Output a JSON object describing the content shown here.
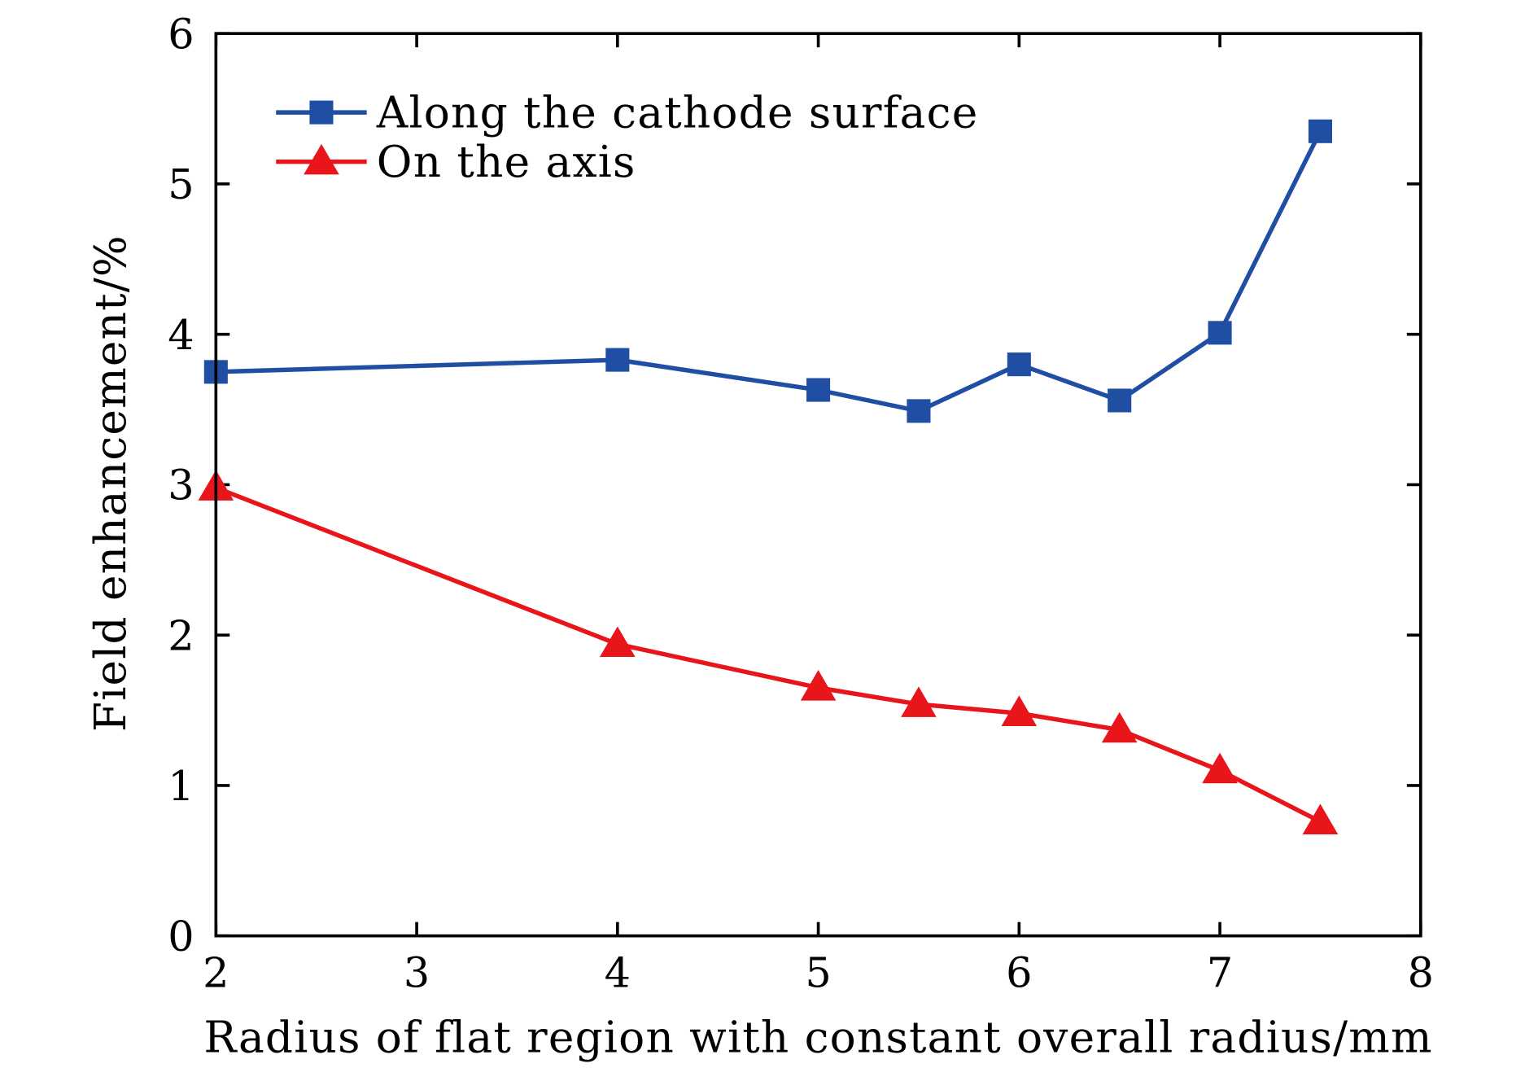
{
  "chart_data": {
    "type": "line",
    "title": "",
    "xlabel": "Radius of flat region with constant overall radius/mm",
    "ylabel": "Field enhancement/%",
    "xlim": [
      2,
      8
    ],
    "ylim": [
      0,
      6
    ],
    "xticks": [
      2,
      3,
      4,
      5,
      6,
      7,
      8
    ],
    "yticks": [
      0,
      1,
      2,
      3,
      4,
      5,
      6
    ],
    "grid": false,
    "legend_position": "top-left",
    "series": [
      {
        "name": "Along the cathode surface",
        "color": "#1f4ea3",
        "marker": "square",
        "x": [
          2,
          4,
          5,
          5.5,
          6,
          6.5,
          7,
          7.5
        ],
        "y": [
          3.75,
          3.83,
          3.63,
          3.49,
          3.8,
          3.56,
          4.01,
          5.35
        ]
      },
      {
        "name": "On the axis",
        "color": "#e8151b",
        "marker": "triangle",
        "x": [
          2,
          4,
          5,
          5.5,
          6,
          6.5,
          7,
          7.5
        ],
        "y": [
          2.98,
          1.94,
          1.65,
          1.54,
          1.48,
          1.37,
          1.1,
          0.76
        ]
      }
    ]
  }
}
